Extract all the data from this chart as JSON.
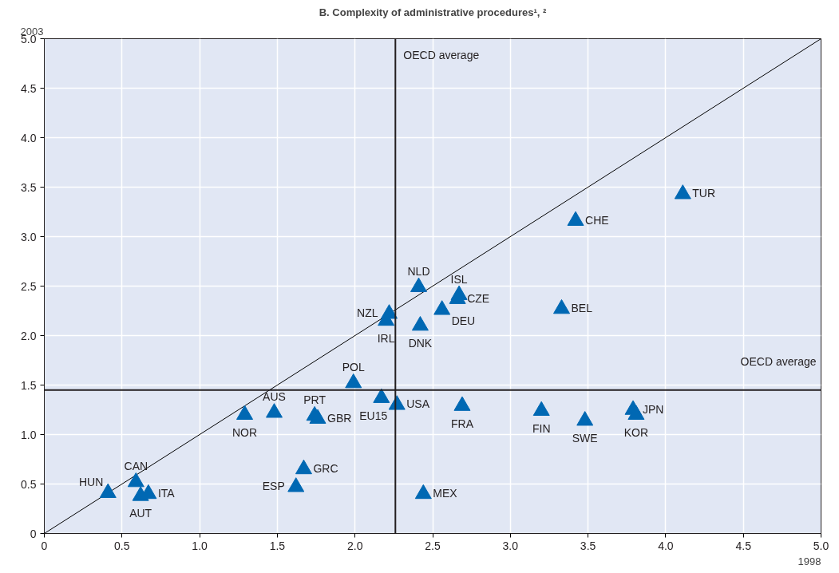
{
  "chart_data": {
    "type": "scatter",
    "title": "B. Complexity of administrative procedures¹, ²",
    "xlabel": "1998",
    "ylabel": "2003",
    "xlim": [
      0,
      5
    ],
    "ylim": [
      0,
      5
    ],
    "xticks": [
      0,
      0.5,
      {
        "value": 1,
        "label": "1.0"
      },
      1.5,
      {
        "value": 2,
        "label": "2.0"
      },
      2.5,
      {
        "value": 3,
        "label": "3.0"
      },
      3.5,
      {
        "value": 4,
        "label": "4.0"
      },
      4.5,
      {
        "value": 5,
        "label": "5.0"
      }
    ],
    "yticks": [
      0,
      0.5,
      {
        "value": 1,
        "label": "1.0"
      },
      1.5,
      {
        "value": 2,
        "label": "2.0"
      },
      2.5,
      {
        "value": 3,
        "label": "3.0"
      },
      3.5,
      {
        "value": 4,
        "label": "4.0"
      },
      4.5,
      {
        "value": 5,
        "label": "5.0"
      }
    ],
    "grid": true,
    "marker": "triangle",
    "series": [
      {
        "color": "#0068b3",
        "x": [
          4.11,
          3.42,
          2.41,
          2.67,
          2.66,
          2.22,
          2.2,
          2.56,
          2.42,
          3.33,
          1.99,
          2.17,
          2.27,
          2.69,
          3.2,
          3.48,
          3.79,
          3.81,
          1.29,
          1.48,
          1.74,
          1.76,
          1.67,
          1.62,
          2.44,
          0.41,
          0.59,
          0.62,
          0.67
        ],
        "values": [
          3.43,
          3.16,
          2.49,
          2.41,
          2.37,
          2.22,
          2.15,
          2.26,
          2.1,
          2.27,
          1.52,
          1.37,
          1.3,
          1.29,
          1.24,
          1.14,
          1.25,
          1.2,
          1.2,
          1.22,
          1.19,
          1.16,
          0.65,
          0.47,
          0.4,
          0.41,
          0.52,
          0.38,
          0.4
        ]
      },
      {
        "type": "line",
        "marker": "none",
        "color": "#000000",
        "x": [
          0,
          5
        ],
        "values": [
          0,
          5
        ]
      }
    ],
    "ref_lines": [
      {
        "axis": "x",
        "value": 2.26,
        "label": "OECD average",
        "color": "#231f20"
      },
      {
        "axis": "y",
        "value": 1.45,
        "label": "OECD average",
        "color": "#231f20"
      }
    ],
    "annotations": [
      {
        "text": "TUR",
        "x": 4.11,
        "y": 3.43
      },
      {
        "text": "CHE",
        "x": 3.42,
        "y": 3.16
      },
      {
        "text": "NLD",
        "x": 2.41,
        "y": 2.49
      },
      {
        "text": "ISL",
        "x": 2.67,
        "y": 2.41
      },
      {
        "text": "CZE",
        "x": 2.66,
        "y": 2.37
      },
      {
        "text": "NZL",
        "x": 2.22,
        "y": 2.22
      },
      {
        "text": "IRL",
        "x": 2.2,
        "y": 2.15
      },
      {
        "text": "DEU",
        "x": 2.56,
        "y": 2.26
      },
      {
        "text": "DNK",
        "x": 2.42,
        "y": 2.1
      },
      {
        "text": "BEL",
        "x": 3.33,
        "y": 2.27
      },
      {
        "text": "POL",
        "x": 1.99,
        "y": 1.52
      },
      {
        "text": "EU15",
        "x": 2.17,
        "y": 1.37
      },
      {
        "text": "USA",
        "x": 2.27,
        "y": 1.3
      },
      {
        "text": "FRA",
        "x": 2.69,
        "y": 1.29
      },
      {
        "text": "FIN",
        "x": 3.2,
        "y": 1.24
      },
      {
        "text": "SWE",
        "x": 3.48,
        "y": 1.14
      },
      {
        "text": "JPN",
        "x": 3.79,
        "y": 1.25
      },
      {
        "text": "KOR",
        "x": 3.81,
        "y": 1.2
      },
      {
        "text": "NOR",
        "x": 1.29,
        "y": 1.2
      },
      {
        "text": "AUS",
        "x": 1.48,
        "y": 1.22
      },
      {
        "text": "PRT",
        "x": 1.74,
        "y": 1.19
      },
      {
        "text": "GBR",
        "x": 1.76,
        "y": 1.16
      },
      {
        "text": "GRC",
        "x": 1.67,
        "y": 0.65
      },
      {
        "text": "ESP",
        "x": 1.62,
        "y": 0.47
      },
      {
        "text": "MEX",
        "x": 2.44,
        "y": 0.4
      },
      {
        "text": "HUN",
        "x": 0.41,
        "y": 0.41
      },
      {
        "text": "CAN",
        "x": 0.59,
        "y": 0.52
      },
      {
        "text": "AUT",
        "x": 0.62,
        "y": 0.38
      },
      {
        "text": "ITA",
        "x": 0.67,
        "y": 0.4
      }
    ]
  }
}
